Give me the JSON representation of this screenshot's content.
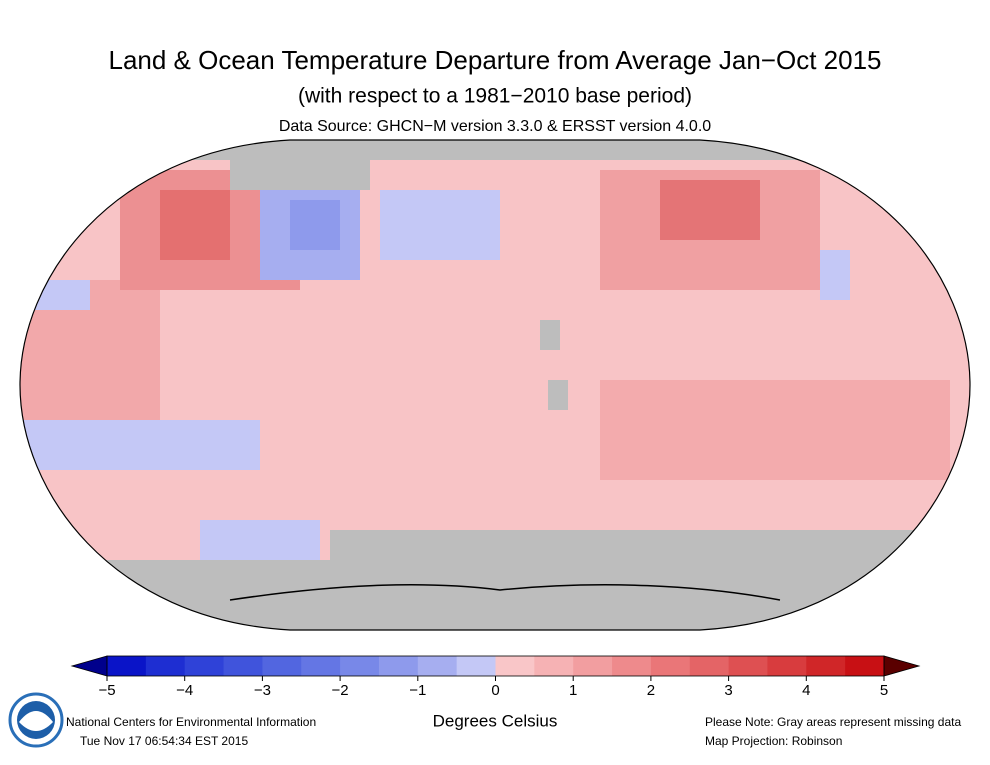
{
  "header": {
    "title": "Land & Ocean Temperature Departure from Average Jan−Oct 2015",
    "subtitle": "(with respect to a 1981−2010 base period)",
    "source": "Data Source: GHCN−M version 3.3.0 & ERSST version 4.0.0"
  },
  "colorbar": {
    "label": "Degrees Celsius",
    "clim": [
      -5,
      5
    ],
    "ticks": [
      {
        "value": -5,
        "label": "−5"
      },
      {
        "value": -4,
        "label": "−4"
      },
      {
        "value": -3,
        "label": "−3"
      },
      {
        "value": -2,
        "label": "−2"
      },
      {
        "value": -1,
        "label": "−1"
      },
      0,
      1,
      2,
      3,
      4,
      5
    ],
    "under_color": "#00008c",
    "over_color": "#5a0000",
    "colors": [
      "#0a14c8",
      "#1e2ed2",
      "#2f42d8",
      "#4054dc",
      "#5266e0",
      "#6476e4",
      "#7888e8",
      "#8e9aec",
      "#a6aef0",
      "#c4c8f6",
      "#f9c6c8",
      "#f6b2b4",
      "#f29ea0",
      "#ee8a8c",
      "#ea7678",
      "#e46466",
      "#de5052",
      "#d83c3e",
      "#d02628",
      "#c81014"
    ]
  },
  "footer": {
    "org": "National Centers for Environmental Information",
    "timestamp": "Tue Nov 17 06:54:34 EST 2015",
    "note": "Please Note: Gray areas represent missing data",
    "projection": "Map Projection: Robinson"
  }
}
